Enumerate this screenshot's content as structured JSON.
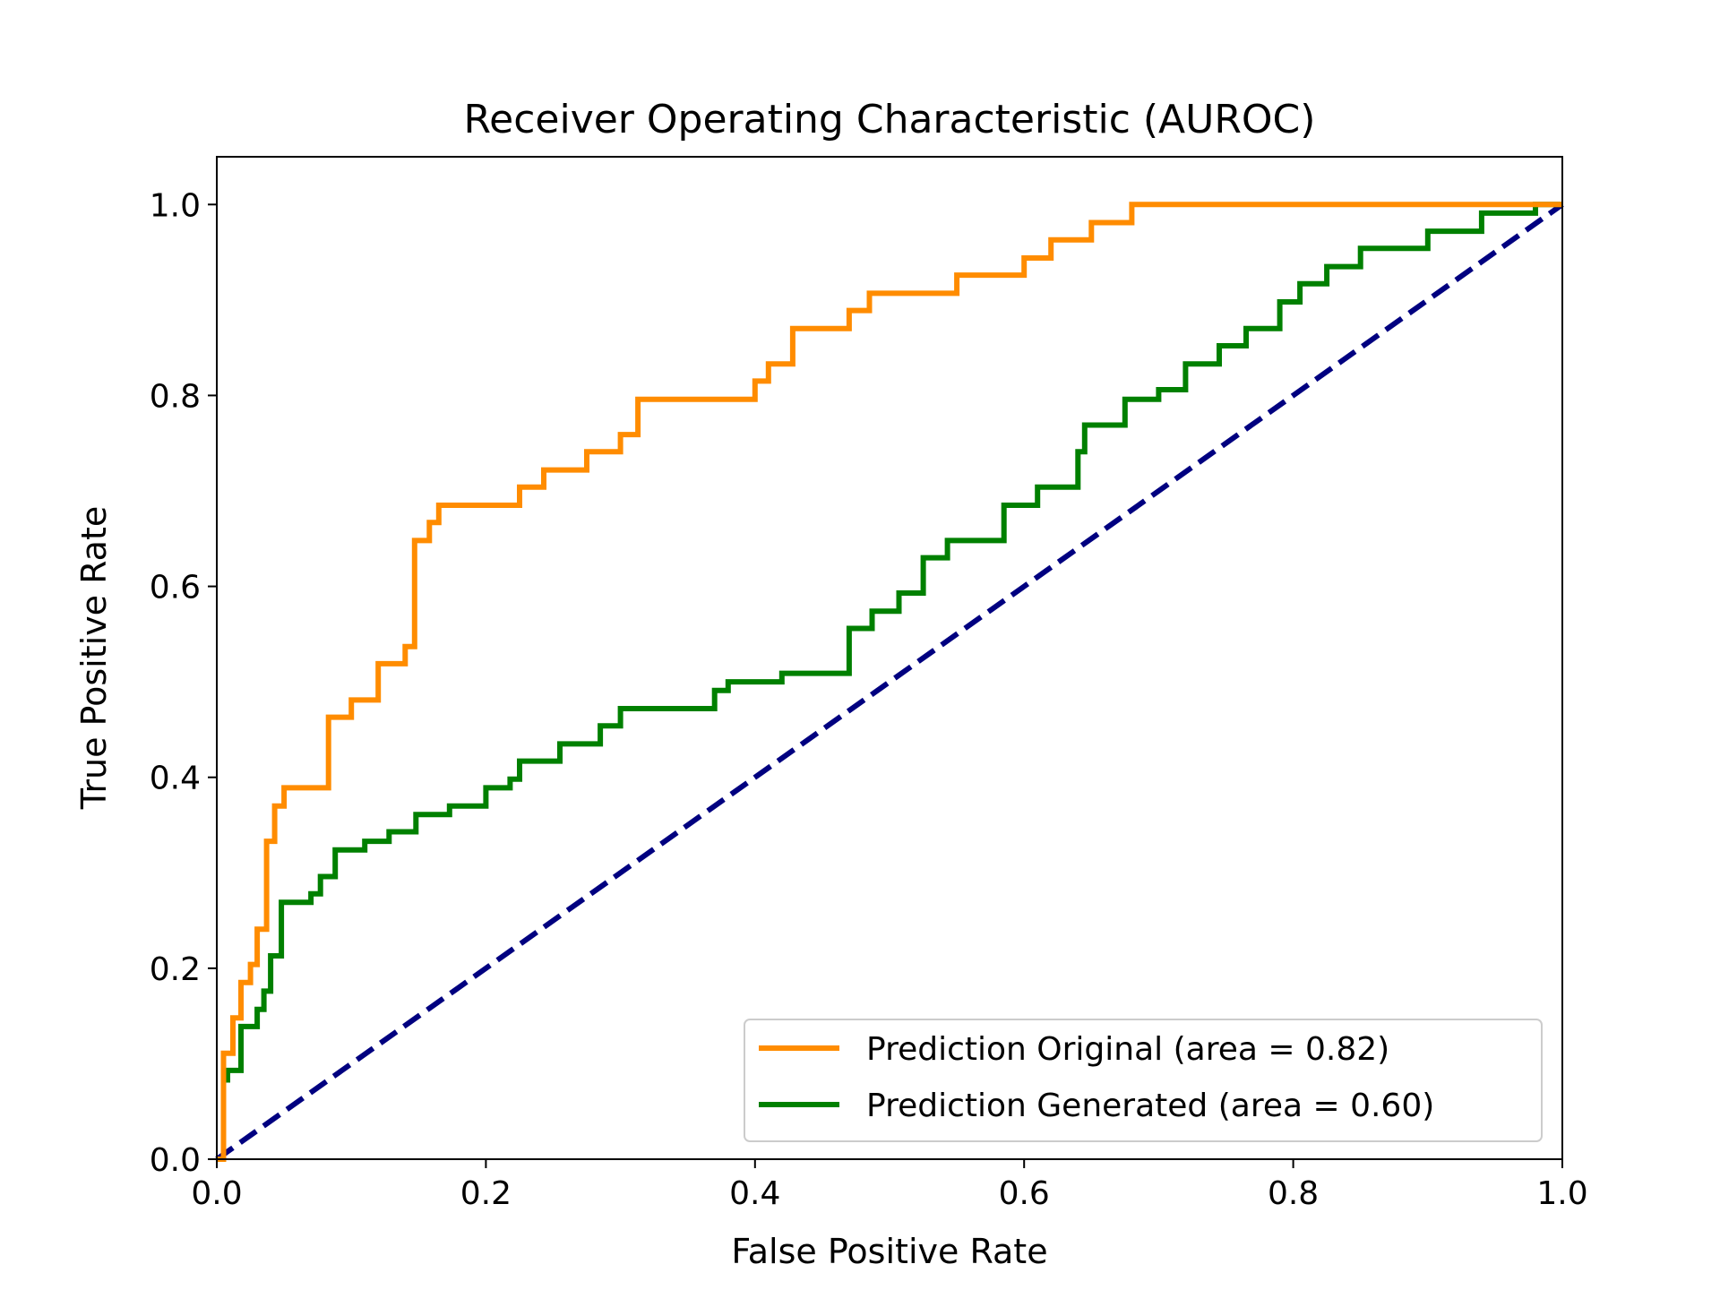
{
  "chart_data": {
    "type": "line",
    "title": "Receiver Operating Characteristic (AUROC)",
    "xlabel": "False Positive Rate",
    "ylabel": "True Positive Rate",
    "xlim": [
      0.0,
      1.0
    ],
    "ylim": [
      0.0,
      1.05
    ],
    "xticks": [
      "0.0",
      "0.2",
      "0.4",
      "0.6",
      "0.8",
      "1.0"
    ],
    "yticks": [
      "0.0",
      "0.2",
      "0.4",
      "0.6",
      "0.8",
      "1.0"
    ],
    "grid": false,
    "legend_position": "lower-right",
    "series": [
      {
        "name": "Prediction Original (area = 0.82)",
        "color": "#ff8c00",
        "style": "solid",
        "x": [
          0.0,
          0.005,
          0.005,
          0.012,
          0.012,
          0.018,
          0.018,
          0.025,
          0.025,
          0.03,
          0.03,
          0.037,
          0.037,
          0.043,
          0.043,
          0.05,
          0.05,
          0.083,
          0.083,
          0.1,
          0.1,
          0.12,
          0.12,
          0.14,
          0.14,
          0.147,
          0.147,
          0.158,
          0.158,
          0.165,
          0.165,
          0.225,
          0.225,
          0.243,
          0.243,
          0.275,
          0.275,
          0.3,
          0.3,
          0.313,
          0.313,
          0.4,
          0.4,
          0.41,
          0.41,
          0.428,
          0.428,
          0.47,
          0.47,
          0.485,
          0.485,
          0.55,
          0.55,
          0.6,
          0.6,
          0.62,
          0.62,
          0.65,
          0.65,
          0.68,
          0.68,
          0.98,
          0.98,
          1.0
        ],
        "y": [
          0.0,
          0.0,
          0.111,
          0.111,
          0.148,
          0.148,
          0.185,
          0.185,
          0.204,
          0.204,
          0.241,
          0.241,
          0.333,
          0.333,
          0.37,
          0.37,
          0.389,
          0.389,
          0.463,
          0.463,
          0.481,
          0.481,
          0.519,
          0.519,
          0.537,
          0.537,
          0.648,
          0.648,
          0.667,
          0.667,
          0.685,
          0.685,
          0.704,
          0.704,
          0.722,
          0.722,
          0.741,
          0.741,
          0.759,
          0.759,
          0.796,
          0.796,
          0.815,
          0.815,
          0.833,
          0.833,
          0.87,
          0.87,
          0.889,
          0.889,
          0.907,
          0.907,
          0.926,
          0.926,
          0.944,
          0.944,
          0.963,
          0.963,
          0.981,
          0.981,
          1.0,
          1.0,
          1.0,
          1.0
        ]
      },
      {
        "name": "Prediction Generated (area = 0.60)",
        "color": "#008000",
        "style": "solid",
        "x": [
          0.0,
          0.005,
          0.005,
          0.008,
          0.008,
          0.018,
          0.018,
          0.03,
          0.03,
          0.035,
          0.035,
          0.04,
          0.04,
          0.048,
          0.048,
          0.07,
          0.07,
          0.077,
          0.077,
          0.088,
          0.088,
          0.11,
          0.11,
          0.128,
          0.128,
          0.148,
          0.148,
          0.173,
          0.173,
          0.2,
          0.2,
          0.218,
          0.218,
          0.225,
          0.225,
          0.255,
          0.255,
          0.285,
          0.285,
          0.3,
          0.3,
          0.37,
          0.37,
          0.38,
          0.38,
          0.42,
          0.42,
          0.47,
          0.47,
          0.487,
          0.487,
          0.507,
          0.507,
          0.525,
          0.525,
          0.543,
          0.543,
          0.585,
          0.585,
          0.61,
          0.61,
          0.64,
          0.64,
          0.645,
          0.645,
          0.675,
          0.675,
          0.7,
          0.7,
          0.72,
          0.72,
          0.745,
          0.745,
          0.765,
          0.765,
          0.79,
          0.79,
          0.805,
          0.805,
          0.825,
          0.825,
          0.85,
          0.85,
          0.9,
          0.9,
          0.94,
          0.94,
          0.98,
          0.98,
          1.0
        ],
        "y": [
          0.0,
          0.0,
          0.083,
          0.083,
          0.093,
          0.093,
          0.139,
          0.139,
          0.157,
          0.157,
          0.176,
          0.176,
          0.213,
          0.213,
          0.269,
          0.269,
          0.278,
          0.278,
          0.296,
          0.296,
          0.324,
          0.324,
          0.333,
          0.333,
          0.343,
          0.343,
          0.361,
          0.361,
          0.37,
          0.37,
          0.389,
          0.389,
          0.398,
          0.398,
          0.417,
          0.417,
          0.435,
          0.435,
          0.454,
          0.454,
          0.472,
          0.472,
          0.491,
          0.491,
          0.5,
          0.5,
          0.509,
          0.509,
          0.556,
          0.556,
          0.574,
          0.574,
          0.593,
          0.593,
          0.63,
          0.63,
          0.648,
          0.648,
          0.685,
          0.685,
          0.704,
          0.704,
          0.741,
          0.741,
          0.769,
          0.769,
          0.796,
          0.796,
          0.806,
          0.806,
          0.833,
          0.833,
          0.852,
          0.852,
          0.87,
          0.87,
          0.898,
          0.898,
          0.917,
          0.917,
          0.935,
          0.935,
          0.954,
          0.954,
          0.972,
          0.972,
          0.991,
          0.991,
          1.0,
          1.0
        ]
      },
      {
        "name": "",
        "color": "#000080",
        "style": "dashed",
        "x": [
          0.0,
          1.0
        ],
        "y": [
          0.0,
          1.0
        ]
      }
    ]
  }
}
